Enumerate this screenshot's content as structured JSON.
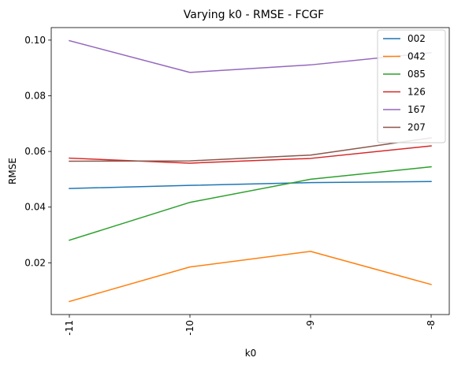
{
  "chart_data": {
    "type": "line",
    "title": "Varying k0 - RMSE - FCGF",
    "xlabel": "k0",
    "ylabel": "RMSE",
    "categories": [
      "-11",
      "-10",
      "-9",
      "-8"
    ],
    "xlim": [
      -11.2,
      3.2
    ],
    "ylim": [
      0.0014,
      0.1045
    ],
    "yticks": [
      0.02,
      0.04,
      0.06,
      0.08,
      0.1
    ],
    "ytick_labels": [
      "0.02",
      "0.04",
      "0.06",
      "0.08",
      "0.10"
    ],
    "xtick_rotation": 90,
    "grid": false,
    "legend_position": "top-right",
    "series": [
      {
        "name": "002",
        "color": "#1f77b4",
        "values": [
          0.0467,
          0.0478,
          0.0488,
          0.0492
        ]
      },
      {
        "name": "042",
        "color": "#ff7f0e",
        "values": [
          0.0061,
          0.0185,
          0.0241,
          0.0122
        ]
      },
      {
        "name": "085",
        "color": "#2ca02c",
        "values": [
          0.0281,
          0.0417,
          0.05,
          0.0545
        ]
      },
      {
        "name": "126",
        "color": "#d62728",
        "values": [
          0.0576,
          0.0558,
          0.0575,
          0.062
        ]
      },
      {
        "name": "167",
        "color": "#9467bd",
        "values": [
          0.0998,
          0.0884,
          0.0911,
          0.0955
        ]
      },
      {
        "name": "207",
        "color": "#8c564b",
        "values": [
          0.0565,
          0.0566,
          0.0587,
          0.0649
        ]
      }
    ]
  }
}
